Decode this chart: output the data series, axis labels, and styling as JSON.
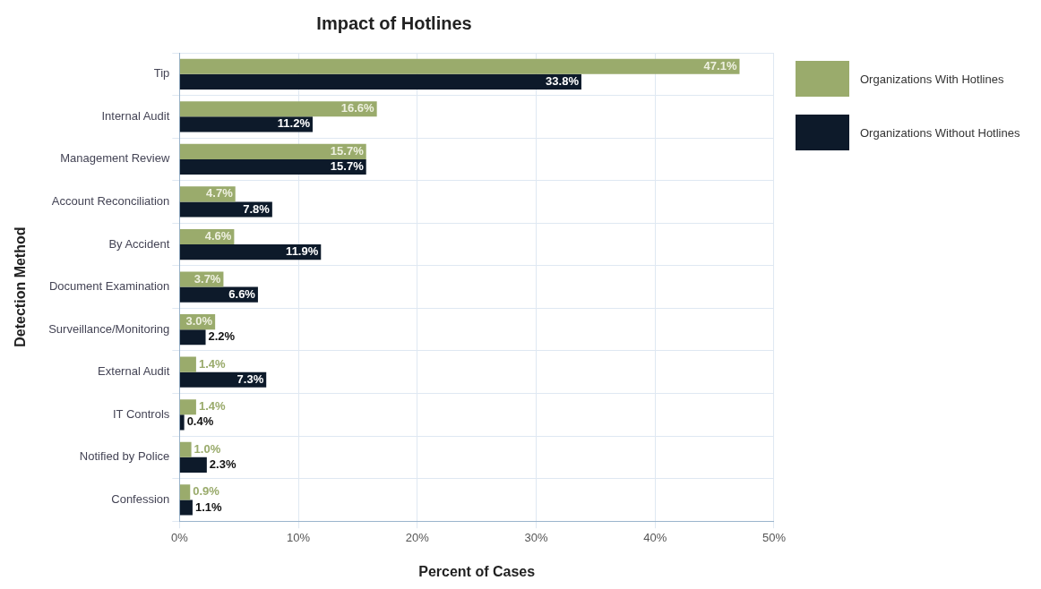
{
  "chart_data": {
    "type": "bar",
    "orientation": "horizontal",
    "title": "Impact of Hotlines",
    "xlabel": "Percent of Cases",
    "ylabel": "Detection Method",
    "categories": [
      "Tip",
      "Internal Audit",
      "Management Review",
      "Account Reconciliation",
      "By Accident",
      "Document Examination",
      "Surveillance/Monitoring",
      "External Audit",
      "IT Controls",
      "Notified by Police",
      "Confession"
    ],
    "series": [
      {
        "name": "Organizations With Hotlines",
        "color": "#9aab6c",
        "values": [
          47.1,
          16.6,
          15.7,
          4.7,
          4.6,
          3.7,
          3.0,
          1.4,
          1.4,
          1.0,
          0.9
        ],
        "value_labels": [
          "47.1%",
          "16.6%",
          "15.7%",
          "4.7%",
          "4.6%",
          "3.7%",
          "3.0%",
          "1.4%",
          "1.4%",
          "1.0%",
          "0.9%"
        ]
      },
      {
        "name": "Organizations Without Hotlines",
        "color": "#0d1a2a",
        "values": [
          33.8,
          11.2,
          15.7,
          7.8,
          11.9,
          6.6,
          2.2,
          7.3,
          0.4,
          2.3,
          1.1
        ],
        "value_labels": [
          "33.8%",
          "11.2%",
          "15.7%",
          "7.8%",
          "11.9%",
          "6.6%",
          "2.2%",
          "7.3%",
          "0.4%",
          "2.3%",
          "1.1%"
        ]
      }
    ],
    "xlim": [
      0,
      50
    ],
    "xticks": [
      {
        "value": 0,
        "label": "0%"
      },
      {
        "value": 10,
        "label": "10%"
      },
      {
        "value": 20,
        "label": "20%"
      },
      {
        "value": 30,
        "label": "30%"
      },
      {
        "value": 40,
        "label": "40%"
      },
      {
        "value": 50,
        "label": "50%"
      }
    ],
    "grid": true,
    "legend": "top right"
  }
}
